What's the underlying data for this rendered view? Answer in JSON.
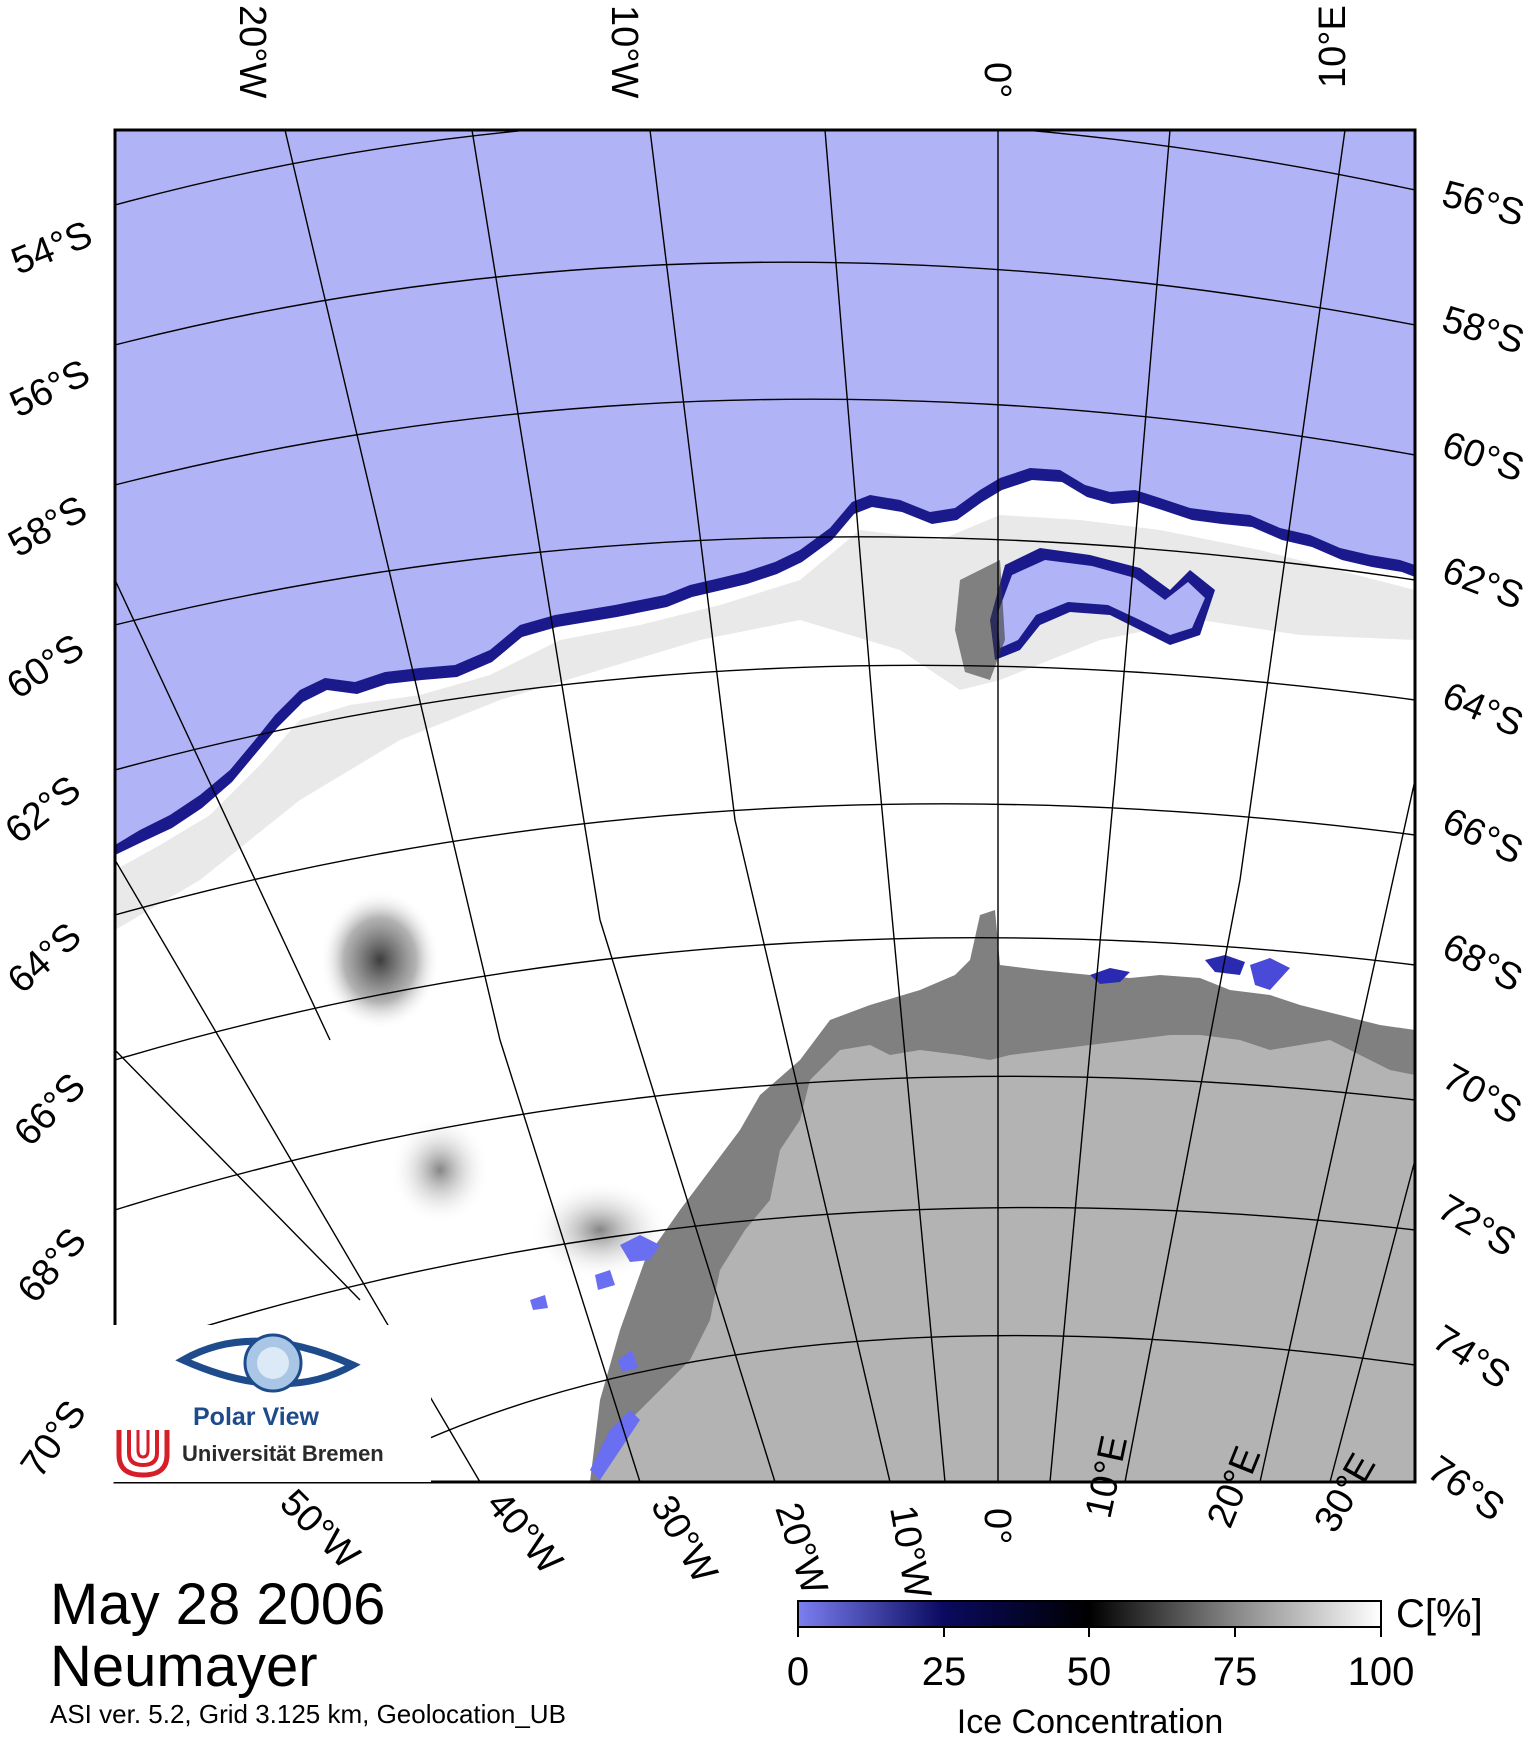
{
  "title": {
    "date": "May 28 2006",
    "station": "Neumayer",
    "subtitle": "ASI ver. 5.2,  Grid 3.125 km, Geolocation_UB"
  },
  "map": {
    "top_lon_labels": [
      "20°W",
      "10°W",
      "0°",
      "10°E"
    ],
    "bottom_lon_labels": [
      "50°W",
      "40°W",
      "30°W",
      "20°W",
      "10°W",
      "0°",
      "10°E",
      "20°E",
      "30°E"
    ],
    "left_lat_labels": [
      "54°S",
      "56°S",
      "58°S",
      "60°S",
      "62°S",
      "64°S",
      "66°S",
      "68°S",
      "70°S"
    ],
    "right_lat_labels": [
      "56°S",
      "58°S",
      "60°S",
      "62°S",
      "64°S",
      "66°S",
      "68°S",
      "70°S",
      "72°S",
      "74°S",
      "76°S"
    ],
    "colors": {
      "open_water": "#b0b3f5",
      "ice_edge": "#1a1a8c",
      "sea_ice": "#ffffff",
      "ice_shelf": "#808080",
      "land": "#b3b3b3",
      "grid": "#000000"
    }
  },
  "legend": {
    "unit": "C[%]",
    "label": "Ice Concentration",
    "ticks": [
      "0",
      "25",
      "50",
      "75",
      "100"
    ],
    "gradient_colors": [
      "#7b7ff0",
      "#0a0a60",
      "#000000",
      "#888888",
      "#ffffff"
    ]
  },
  "logo": {
    "name": "Polar View",
    "institution": "Universität Bremen"
  }
}
